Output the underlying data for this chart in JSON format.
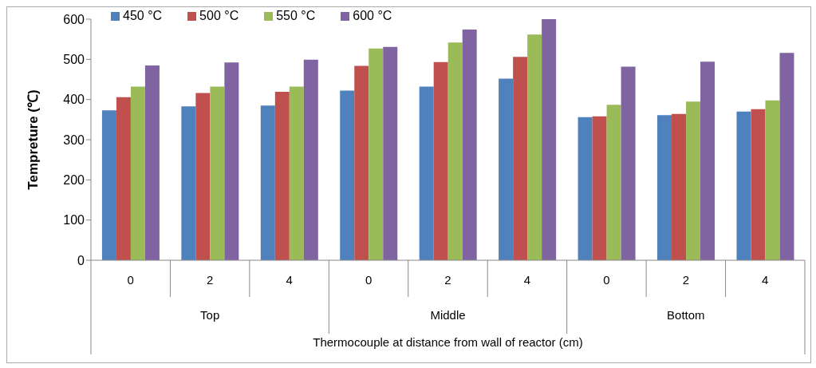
{
  "chart_data": {
    "type": "bar",
    "ylabel": "Tempreture (℃)",
    "xlabel": "Thermocouple at distance from wall of reactor (cm)",
    "categories": [
      "0",
      "2",
      "4",
      "0",
      "2",
      "4",
      "0",
      "2",
      "4"
    ],
    "annotations": [
      "Top",
      "Middle",
      "Bottom"
    ],
    "series": [
      {
        "name": "450 °C",
        "color": "#4f81bd",
        "values": [
          373,
          383,
          385,
          422,
          432,
          452,
          356,
          361,
          370
        ]
      },
      {
        "name": "500 °C",
        "color": "#c0504d",
        "values": [
          406,
          416,
          419,
          484,
          493,
          506,
          358,
          364,
          376
        ]
      },
      {
        "name": "550 °C",
        "color": "#9bbb59",
        "values": [
          432,
          432,
          432,
          527,
          542,
          562,
          387,
          395,
          398
        ]
      },
      {
        "name": "600 °C",
        "color": "#8064a2",
        "values": [
          485,
          492,
          499,
          531,
          574,
          600,
          482,
          494,
          516
        ]
      }
    ],
    "ylim": [
      0,
      600
    ],
    "yticks": [
      0,
      100,
      200,
      300,
      400,
      500,
      600
    ],
    "grid": false,
    "legend": "top left"
  }
}
